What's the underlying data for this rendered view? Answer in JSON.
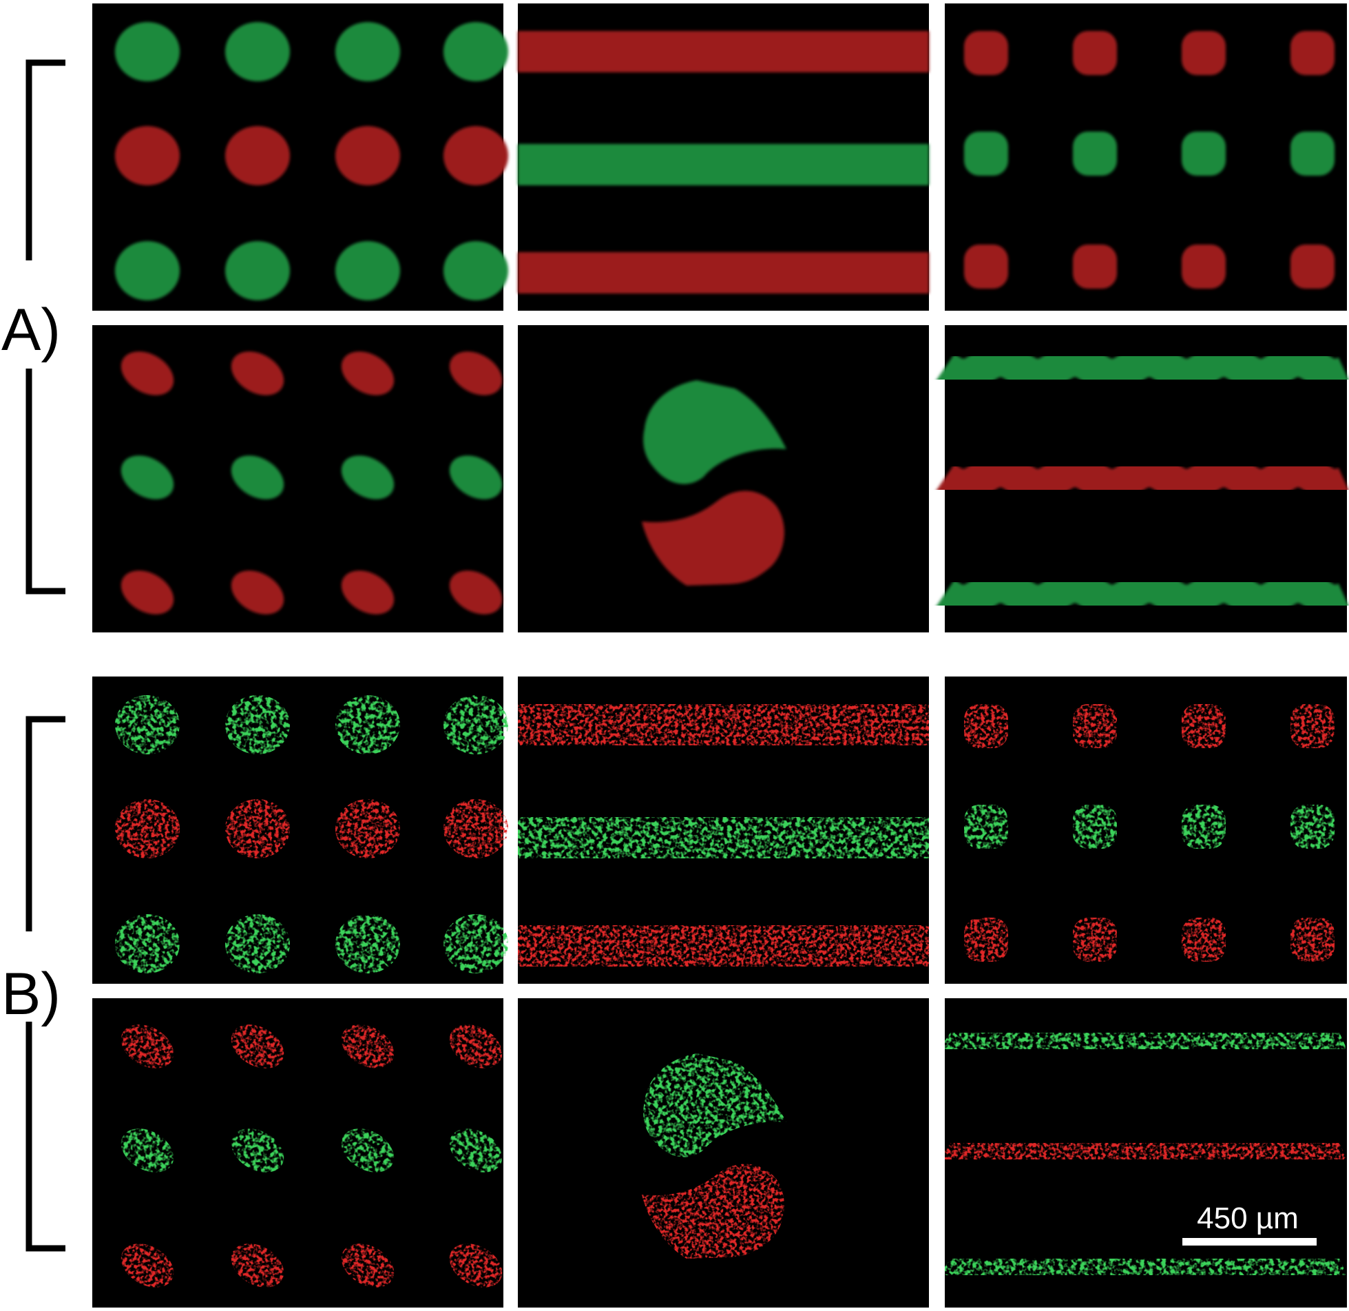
{
  "figure": {
    "groups": [
      {
        "label": "A)",
        "stage": "patterned-gel",
        "rows": [
          [
            "dot-array",
            "stripe-array",
            "square-dot-array"
          ],
          [
            "ellipse-array",
            "interlocking-pair",
            "wave-stripe-array"
          ]
        ]
      },
      {
        "label": "B)",
        "stage": "cell-pattern",
        "rows": [
          [
            "dot-array",
            "stripe-array",
            "square-dot-array"
          ],
          [
            "ellipse-array",
            "interlocking-pair",
            "wave-stripe-array"
          ]
        ]
      }
    ],
    "colors": {
      "green": "#1e8a3e",
      "red": "#9c1a1f",
      "cell_green": "#3bd25a",
      "cell_red": "#e02828",
      "background": "#000000"
    },
    "scale_bar": {
      "label": "450 µm"
    }
  }
}
